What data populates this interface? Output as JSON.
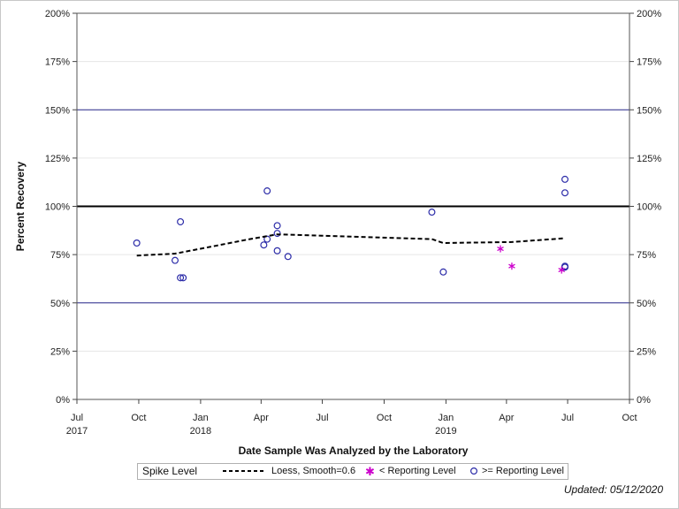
{
  "chart_data": {
    "type": "scatter",
    "xlabel": "Date Sample Was Analyzed by the Laboratory",
    "ylabel": "Percent Recovery",
    "x_axis": {
      "type": "date",
      "range": [
        "2017-07-01",
        "2019-10-01"
      ],
      "ticks": [
        {
          "date": "2017-07-01",
          "label": "Jul",
          "sublabel": "2017"
        },
        {
          "date": "2017-10-01",
          "label": "Oct",
          "sublabel": ""
        },
        {
          "date": "2018-01-01",
          "label": "Jan",
          "sublabel": "2018"
        },
        {
          "date": "2018-04-01",
          "label": "Apr",
          "sublabel": ""
        },
        {
          "date": "2018-07-01",
          "label": "Jul",
          "sublabel": ""
        },
        {
          "date": "2018-10-01",
          "label": "Oct",
          "sublabel": ""
        },
        {
          "date": "2019-01-01",
          "label": "Jan",
          "sublabel": "2019"
        },
        {
          "date": "2019-04-01",
          "label": "Apr",
          "sublabel": ""
        },
        {
          "date": "2019-07-01",
          "label": "Jul",
          "sublabel": ""
        },
        {
          "date": "2019-10-01",
          "label": "Oct",
          "sublabel": ""
        }
      ]
    },
    "y_axis": {
      "range": [
        0,
        200
      ],
      "ticks": [
        0,
        25,
        50,
        75,
        100,
        125,
        150,
        175,
        200
      ],
      "tick_labels": [
        "0%",
        "25%",
        "50%",
        "75%",
        "100%",
        "125%",
        "150%",
        "175%",
        "200%"
      ],
      "grid": true
    },
    "reference_lines": [
      {
        "y": 100,
        "color": "#000000",
        "style": "bold"
      },
      {
        "y": 150,
        "color": "#2b2b8c",
        "style": "thin"
      },
      {
        "y": 50,
        "color": "#2b2b8c",
        "style": "thin"
      }
    ],
    "series": [
      {
        "name": ">= Reporting Level",
        "marker": "circle",
        "color": "#2b2ba8",
        "points": [
          {
            "x": "2017-09-28",
            "y": 81
          },
          {
            "x": "2017-11-24",
            "y": 72
          },
          {
            "x": "2017-12-02",
            "y": 92
          },
          {
            "x": "2017-12-02",
            "y": 63
          },
          {
            "x": "2017-12-06",
            "y": 63
          },
          {
            "x": "2018-04-05",
            "y": 80
          },
          {
            "x": "2018-04-10",
            "y": 108
          },
          {
            "x": "2018-04-10",
            "y": 83
          },
          {
            "x": "2018-04-25",
            "y": 90
          },
          {
            "x": "2018-04-25",
            "y": 86
          },
          {
            "x": "2018-04-25",
            "y": 77
          },
          {
            "x": "2018-05-11",
            "y": 74
          },
          {
            "x": "2018-12-11",
            "y": 97
          },
          {
            "x": "2018-12-28",
            "y": 66
          },
          {
            "x": "2019-06-27",
            "y": 114
          },
          {
            "x": "2019-06-27",
            "y": 107
          },
          {
            "x": "2019-06-27",
            "y": 69
          },
          {
            "x": "2019-06-27",
            "y": 68.5
          }
        ]
      },
      {
        "name": "< Reporting Level",
        "marker": "asterisk",
        "color": "#cc00cc",
        "points": [
          {
            "x": "2019-03-23",
            "y": 78
          },
          {
            "x": "2019-04-09",
            "y": 69
          },
          {
            "x": "2019-06-22",
            "y": 67
          }
        ]
      },
      {
        "name": "Loess, Smooth=0.6",
        "type": "line",
        "style": "dashed",
        "color": "#000000",
        "points": [
          {
            "x": "2017-09-28",
            "y": 74.5
          },
          {
            "x": "2017-11-24",
            "y": 75.5
          },
          {
            "x": "2018-01-15",
            "y": 79
          },
          {
            "x": "2018-03-15",
            "y": 83
          },
          {
            "x": "2018-04-25",
            "y": 85.5
          },
          {
            "x": "2018-07-01",
            "y": 84.8
          },
          {
            "x": "2018-12-11",
            "y": 83
          },
          {
            "x": "2018-12-28",
            "y": 81
          },
          {
            "x": "2019-04-09",
            "y": 81.5
          },
          {
            "x": "2019-06-27",
            "y": 83.5
          }
        ]
      }
    ]
  },
  "legend": {
    "title": "Spike Level",
    "items": [
      {
        "label": "Loess, Smooth=0.6"
      },
      {
        "label": "< Reporting Level"
      },
      {
        "label": ">= Reporting Level"
      }
    ]
  },
  "footer": {
    "updated": "Updated: 05/12/2020"
  }
}
